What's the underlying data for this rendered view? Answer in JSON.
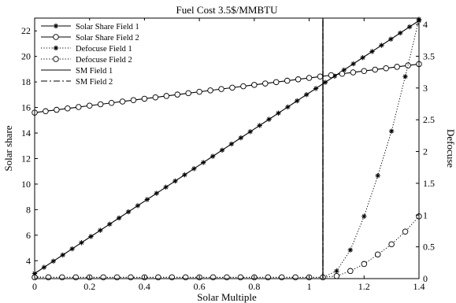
{
  "chart_data": {
    "type": "line",
    "title": "Fuel Cost 3.5$/MMBTU",
    "xlabel": "Solar Multiple",
    "ylabel_left": "Solar share",
    "ylabel_right": "Defocuse",
    "xlim": [
      0,
      1.4
    ],
    "ylim_left": [
      2.6,
      23
    ],
    "ylim_right": [
      0,
      4.1
    ],
    "x_ticks": [
      "0",
      "0.2",
      "0.4",
      "0.6",
      "0.8",
      "1",
      "1.2",
      "1.4"
    ],
    "y_left_ticks": [
      "4",
      "6",
      "8",
      "10",
      "12",
      "14",
      "16",
      "18",
      "20",
      "22"
    ],
    "y_right_ticks": [
      "0",
      "0.5",
      "1",
      "1.5",
      "2",
      "2.5",
      "3",
      "3.5",
      "4"
    ],
    "legend_position": "top-left",
    "series": [
      {
        "name": "Solar Share Field 1",
        "axis": "left",
        "style": "solid-star",
        "x": [
          0,
          1.4
        ],
        "y": [
          3.0,
          22.8
        ],
        "marker_count": 42
      },
      {
        "name": "Solar Share Field 2",
        "axis": "left",
        "style": "solid-circle",
        "x": [
          0,
          1.4
        ],
        "y": [
          15.6,
          19.4
        ],
        "marker_count": 36
      },
      {
        "name": "Defocuse Field 1",
        "axis": "right",
        "style": "dotted-star",
        "x": [
          0,
          0.05,
          0.1,
          0.15,
          0.2,
          0.25,
          0.3,
          0.35,
          0.4,
          0.45,
          0.5,
          0.55,
          0.6,
          0.65,
          0.7,
          0.75,
          0.8,
          0.85,
          0.9,
          0.95,
          1.0,
          1.05,
          1.1,
          1.15,
          1.2,
          1.25,
          1.3,
          1.35,
          1.4
        ],
        "y": [
          0.03,
          0.02,
          0.02,
          0.02,
          0.02,
          0.02,
          0.02,
          0.02,
          0.02,
          0.02,
          0.02,
          0.02,
          0.02,
          0.02,
          0.02,
          0.02,
          0.02,
          0.02,
          0.02,
          0.02,
          0.02,
          0.02,
          0.12,
          0.45,
          0.98,
          1.62,
          2.32,
          3.18,
          4.08
        ]
      },
      {
        "name": "Defocuse Field 2",
        "axis": "right",
        "style": "dotted-circle",
        "x": [
          0,
          0.05,
          0.1,
          0.15,
          0.2,
          0.25,
          0.3,
          0.35,
          0.4,
          0.45,
          0.5,
          0.55,
          0.6,
          0.65,
          0.7,
          0.75,
          0.8,
          0.85,
          0.9,
          0.95,
          1.0,
          1.05,
          1.1,
          1.15,
          1.2,
          1.25,
          1.3,
          1.35,
          1.4
        ],
        "y": [
          0.02,
          0.02,
          0.02,
          0.02,
          0.02,
          0.02,
          0.02,
          0.02,
          0.02,
          0.02,
          0.02,
          0.02,
          0.02,
          0.02,
          0.02,
          0.02,
          0.02,
          0.02,
          0.02,
          0.02,
          0.02,
          0.02,
          0.04,
          0.12,
          0.23,
          0.38,
          0.54,
          0.74,
          0.98
        ]
      },
      {
        "name": "SM Field 1",
        "axis": "left",
        "style": "solid-vertical",
        "x": [
          1.05,
          1.05
        ],
        "y": [
          2.6,
          23
        ]
      },
      {
        "name": "SM Field 2",
        "axis": "left",
        "style": "dashdot-vertical",
        "x": [
          1.05,
          1.05
        ],
        "y": [
          2.6,
          23
        ]
      }
    ]
  }
}
